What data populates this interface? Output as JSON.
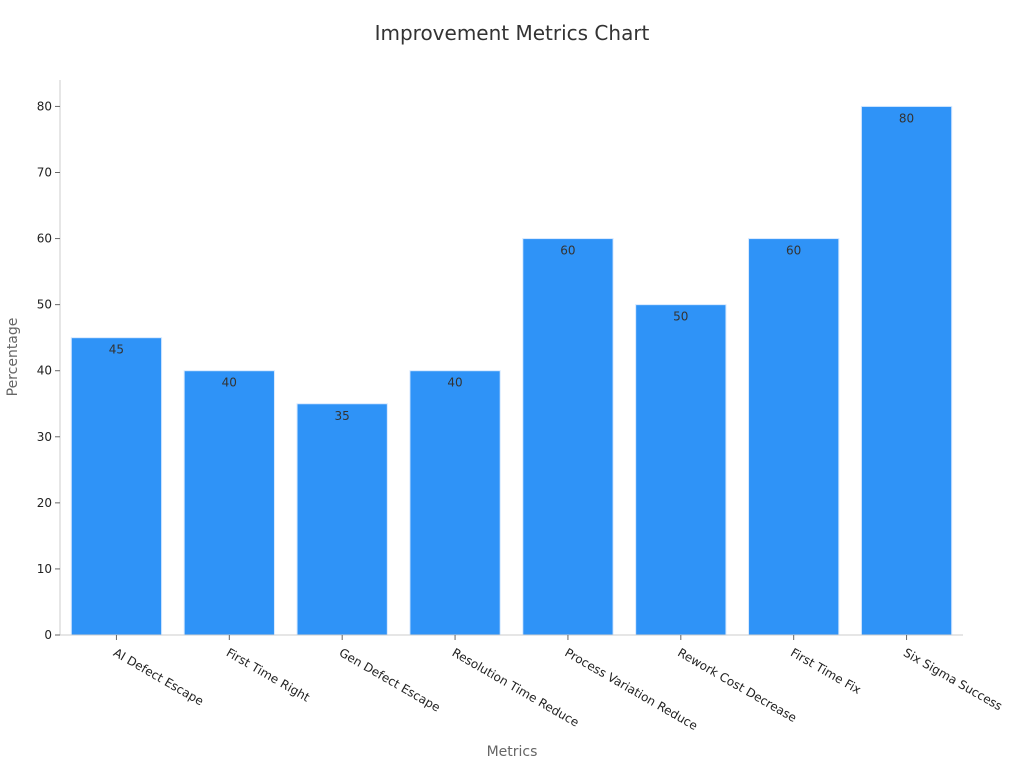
{
  "chart_data": {
    "type": "bar",
    "title": "Improvement Metrics Chart",
    "xlabel": "Metrics",
    "ylabel": "Percentage",
    "categories": [
      "AI Defect Escape",
      "First Time Right",
      "Gen Defect Escape",
      "Resolution Time Reduce",
      "Process Variation Reduce",
      "Rework Cost Decrease",
      "First Time Fix",
      "Six Sigma Success"
    ],
    "values": [
      45,
      40,
      35,
      40,
      60,
      50,
      60,
      80
    ],
    "ylim": [
      0,
      84
    ],
    "yticks": [
      0,
      10,
      20,
      30,
      40,
      50,
      60,
      70,
      80
    ],
    "grid": false,
    "legend": "none",
    "bar_color": "#2f93f7"
  }
}
